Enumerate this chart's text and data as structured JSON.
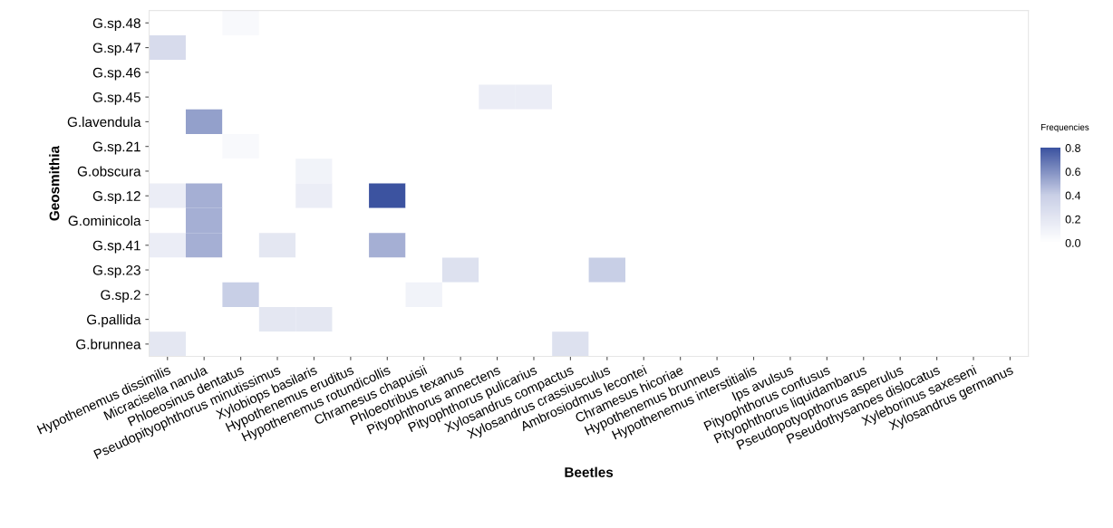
{
  "chart_data": {
    "type": "heatmap",
    "xlabel": "Beetles",
    "ylabel": "Geosmithia",
    "clabel": "Frequencies",
    "categories": [
      "Hypothenemus dissimilis",
      "Micracisella nanula",
      "Phloeosinus dentatus",
      "Pseudopityophthorus minutissimus",
      "Xylobiops basilaris",
      "Hypothenemus eruditus",
      "Hypothenemus rotundicollis",
      "Chramesus chapuisii",
      "Phloeotribus texanus",
      "Pityophthorus annectens",
      "Pityophthorus pulicarius",
      "Xylosandrus compactus",
      "Xylosandrus crassiusculus",
      "Ambrosiodmus lecontei",
      "Chramesus hicoriae",
      "Hypothenemus brunneus",
      "Hypothenemus interstitialis",
      "Ips avulsus",
      "Pityophthorus confusus",
      "Pityophthorus liquidambarus",
      "Pseudopotyopthorus asperulus",
      "Pseudothysanoes dislocatus",
      "Xyleborinus saxeseni",
      "Xylosandrus germanus"
    ],
    "y_categories": [
      "G.sp.48",
      "G.sp.47",
      "G.sp.46",
      "G.sp.45",
      "G.lavendula",
      "G.sp.21",
      "G.obscura",
      "G.sp.12",
      "G.ominicola",
      "G.sp.41",
      "G.sp.23",
      "G.sp.2",
      "G.pallida",
      "G.brunnea"
    ],
    "cells": [
      [
        0,
        0,
        0.05,
        0,
        0,
        0,
        0,
        0,
        0,
        0,
        0,
        0,
        0,
        0,
        0,
        0,
        0,
        0,
        0,
        0,
        0,
        0,
        0,
        0
      ],
      [
        0.3,
        0,
        0,
        0,
        0,
        0,
        0,
        0,
        0,
        0,
        0,
        0,
        0,
        0,
        0,
        0,
        0,
        0,
        0,
        0,
        0,
        0,
        0,
        0
      ],
      [
        0,
        0,
        0,
        0,
        0,
        0,
        0,
        0,
        0,
        0,
        0,
        0,
        0,
        0,
        0,
        0,
        0,
        0,
        0,
        0,
        0,
        0,
        0,
        0
      ],
      [
        0,
        0,
        0,
        0,
        0,
        0,
        0,
        0,
        0,
        0.15,
        0.15,
        0,
        0,
        0,
        0,
        0,
        0,
        0,
        0,
        0,
        0,
        0,
        0,
        0
      ],
      [
        0,
        0.55,
        0,
        0,
        0,
        0,
        0,
        0,
        0,
        0,
        0,
        0,
        0,
        0,
        0,
        0,
        0,
        0,
        0,
        0,
        0,
        0,
        0,
        0
      ],
      [
        0,
        0,
        0.05,
        0,
        0,
        0,
        0,
        0,
        0,
        0,
        0,
        0,
        0,
        0,
        0,
        0,
        0,
        0,
        0,
        0,
        0,
        0,
        0,
        0
      ],
      [
        0,
        0,
        0,
        0,
        0.1,
        0,
        0,
        0,
        0,
        0,
        0,
        0,
        0,
        0,
        0,
        0,
        0,
        0,
        0,
        0,
        0,
        0,
        0,
        0
      ],
      [
        0.15,
        0.5,
        0,
        0,
        0.15,
        0,
        0.8,
        0,
        0,
        0,
        0,
        0,
        0,
        0,
        0,
        0,
        0,
        0,
        0,
        0,
        0,
        0,
        0,
        0
      ],
      [
        0,
        0.5,
        0,
        0,
        0,
        0,
        0,
        0,
        0,
        0,
        0,
        0,
        0,
        0,
        0,
        0,
        0,
        0,
        0,
        0,
        0,
        0,
        0,
        0
      ],
      [
        0.15,
        0.5,
        0,
        0.2,
        0,
        0,
        0.5,
        0,
        0,
        0,
        0,
        0,
        0,
        0,
        0,
        0,
        0,
        0,
        0,
        0,
        0,
        0,
        0,
        0
      ],
      [
        0,
        0,
        0,
        0,
        0,
        0,
        0,
        0,
        0.25,
        0,
        0,
        0,
        0.4,
        0,
        0,
        0,
        0,
        0,
        0,
        0,
        0,
        0,
        0,
        0
      ],
      [
        0,
        0,
        0.4,
        0,
        0,
        0,
        0,
        0.1,
        0,
        0,
        0,
        0,
        0,
        0,
        0,
        0,
        0,
        0,
        0,
        0,
        0,
        0,
        0,
        0
      ],
      [
        0,
        0,
        0,
        0.2,
        0.2,
        0,
        0,
        0,
        0,
        0,
        0,
        0,
        0,
        0,
        0,
        0,
        0,
        0,
        0,
        0,
        0,
        0,
        0,
        0
      ],
      [
        0.2,
        0,
        0,
        0,
        0,
        0,
        0,
        0,
        0,
        0,
        0,
        0.25,
        0,
        0,
        0,
        0,
        0,
        0,
        0,
        0,
        0,
        0,
        0,
        0
      ]
    ],
    "clim": [
      0,
      0.8
    ],
    "cticks": [
      {
        "value": 0,
        "label": "0.0"
      },
      {
        "value": 0.2,
        "label": "0.2"
      },
      {
        "value": 0.4,
        "label": "0.4"
      },
      {
        "value": 0.6,
        "label": "0.6"
      },
      {
        "value": 0.8,
        "label": "0.8"
      }
    ]
  }
}
